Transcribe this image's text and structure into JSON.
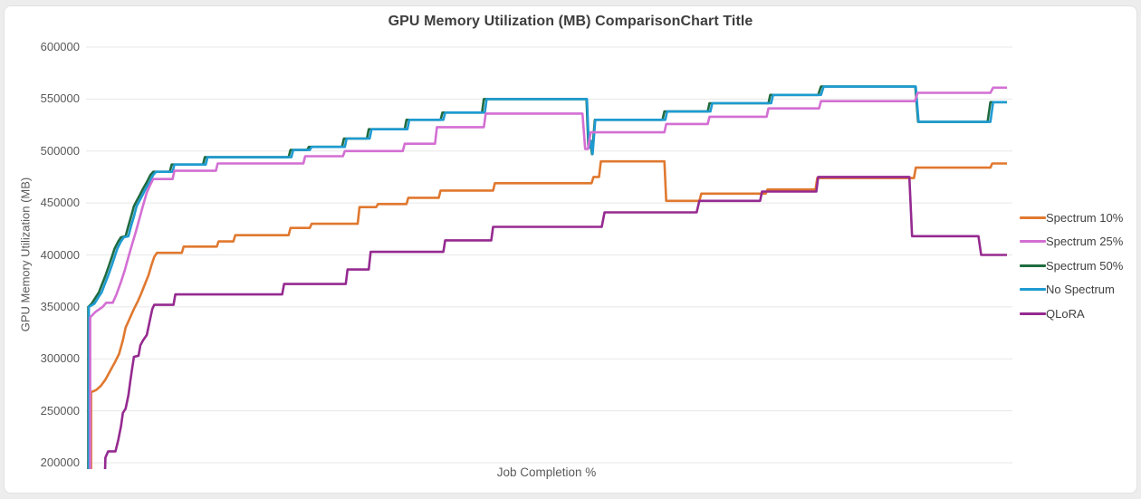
{
  "page": {
    "background": "#ededed",
    "card_background": "#ffffff",
    "card_border": "#e2e2e2"
  },
  "chart": {
    "title": "GPU Memory Utilization (MB) ComparisonChart Title",
    "x_title": "Job Completion %",
    "y_title": "GPU Memory Utilization (MB)"
  },
  "chart_data": {
    "type": "line",
    "title": "GPU Memory Utilization (MB) ComparisonChart Title",
    "xlabel": "Job Completion %",
    "ylabel": "GPU Memory Utilization (MB)",
    "x_range_percent": [
      0,
      100
    ],
    "x_tick_labels": [],
    "ylim": [
      200000,
      600000
    ],
    "y_ticks": [
      600000,
      550000,
      500000,
      450000,
      400000,
      350000,
      300000,
      250000,
      200000
    ],
    "grid": "horizontal-only",
    "gridline_color": "#e7e7e7",
    "legend_position": "right",
    "line_style": "stepped",
    "z_order": [
      0,
      2,
      3,
      1,
      4
    ],
    "series": [
      {
        "name": "Spectrum 10%",
        "color": "#E0782F",
        "points": [
          [
            0.55,
            170000
          ],
          [
            0.55,
            268000
          ],
          [
            1.1,
            270000
          ],
          [
            1.6,
            274000
          ],
          [
            2.1,
            280000
          ],
          [
            2.6,
            288000
          ],
          [
            3.1,
            296000
          ],
          [
            3.6,
            305000
          ],
          [
            4.0,
            318000
          ],
          [
            4.3,
            330000
          ],
          [
            4.7,
            338000
          ],
          [
            5.2,
            348000
          ],
          [
            5.6,
            355000
          ],
          [
            6.0,
            363000
          ],
          [
            6.4,
            372000
          ],
          [
            6.8,
            381000
          ],
          [
            7.1,
            390000
          ],
          [
            7.4,
            398000
          ],
          [
            7.7,
            402000
          ],
          [
            10.4,
            402000
          ],
          [
            10.6,
            408000
          ],
          [
            14.2,
            408000
          ],
          [
            14.4,
            413000
          ],
          [
            16.0,
            413000
          ],
          [
            16.2,
            419000
          ],
          [
            22.0,
            419000
          ],
          [
            22.2,
            426000
          ],
          [
            24.3,
            426000
          ],
          [
            24.5,
            430000
          ],
          [
            29.5,
            430000
          ],
          [
            29.7,
            446000
          ],
          [
            31.5,
            446000
          ],
          [
            31.7,
            449000
          ],
          [
            34.8,
            449000
          ],
          [
            35.0,
            455000
          ],
          [
            38.3,
            455000
          ],
          [
            38.5,
            462000
          ],
          [
            44.2,
            462000
          ],
          [
            44.4,
            469000
          ],
          [
            54.9,
            469000
          ],
          [
            55.1,
            475000
          ],
          [
            55.7,
            475000
          ],
          [
            55.9,
            490000
          ],
          [
            62.8,
            490000
          ],
          [
            63.0,
            452000
          ],
          [
            66.6,
            452000
          ],
          [
            66.8,
            459000
          ],
          [
            73.8,
            459000
          ],
          [
            74.0,
            463000
          ],
          [
            79.2,
            463000
          ],
          [
            79.4,
            474000
          ],
          [
            89.9,
            474000
          ],
          [
            90.1,
            484000
          ],
          [
            98.2,
            484000
          ],
          [
            98.4,
            488000
          ],
          [
            100,
            488000
          ]
        ]
      },
      {
        "name": "Spectrum 25%",
        "color": "#D36FD3",
        "points": [
          [
            0.45,
            170000
          ],
          [
            0.45,
            340000
          ],
          [
            1.0,
            345000
          ],
          [
            1.8,
            350000
          ],
          [
            2.2,
            354000
          ],
          [
            2.9,
            354000
          ],
          [
            3.3,
            362000
          ],
          [
            3.8,
            374000
          ],
          [
            4.2,
            385000
          ],
          [
            4.6,
            398000
          ],
          [
            5.0,
            410000
          ],
          [
            5.4,
            422000
          ],
          [
            5.8,
            435000
          ],
          [
            6.2,
            448000
          ],
          [
            6.6,
            460000
          ],
          [
            7.0,
            468000
          ],
          [
            7.3,
            473000
          ],
          [
            9.4,
            473000
          ],
          [
            9.6,
            481000
          ],
          [
            14.1,
            481000
          ],
          [
            14.3,
            488000
          ],
          [
            23.6,
            488000
          ],
          [
            23.8,
            495000
          ],
          [
            27.9,
            495000
          ],
          [
            28.1,
            500000
          ],
          [
            34.4,
            500000
          ],
          [
            34.6,
            507000
          ],
          [
            37.9,
            507000
          ],
          [
            38.1,
            523000
          ],
          [
            43.2,
            523000
          ],
          [
            43.4,
            536000
          ],
          [
            53.9,
            536000
          ],
          [
            54.2,
            502000
          ],
          [
            54.5,
            502000
          ],
          [
            54.8,
            518000
          ],
          [
            62.8,
            518000
          ],
          [
            63.0,
            526000
          ],
          [
            67.5,
            526000
          ],
          [
            67.7,
            533000
          ],
          [
            73.9,
            533000
          ],
          [
            74.1,
            541000
          ],
          [
            79.6,
            541000
          ],
          [
            79.8,
            548000
          ],
          [
            90.0,
            548000
          ],
          [
            90.3,
            556000
          ],
          [
            98.2,
            556000
          ],
          [
            98.5,
            561000
          ],
          [
            100,
            561000
          ]
        ]
      },
      {
        "name": "Spectrum 50%",
        "color": "#1F6B40",
        "points": [
          [
            0.25,
            170000
          ],
          [
            0.25,
            350000
          ],
          [
            0.6,
            353000
          ],
          [
            1.1,
            360000
          ],
          [
            1.4,
            364000
          ],
          [
            1.7,
            371000
          ],
          [
            2.1,
            380000
          ],
          [
            2.5,
            390000
          ],
          [
            2.8,
            398000
          ],
          [
            3.1,
            406000
          ],
          [
            3.5,
            413000
          ],
          [
            3.8,
            417000
          ],
          [
            4.3,
            418000
          ],
          [
            4.6,
            428000
          ],
          [
            4.9,
            437000
          ],
          [
            5.2,
            447000
          ],
          [
            5.5,
            452000
          ],
          [
            5.8,
            457000
          ],
          [
            6.2,
            464000
          ],
          [
            6.6,
            470000
          ],
          [
            7.0,
            477000
          ],
          [
            7.3,
            480000
          ],
          [
            9.1,
            480000
          ],
          [
            9.3,
            487000
          ],
          [
            12.7,
            487000
          ],
          [
            12.9,
            494000
          ],
          [
            22.0,
            494000
          ],
          [
            22.2,
            501000
          ],
          [
            24.0,
            501000
          ],
          [
            24.2,
            504000
          ],
          [
            27.8,
            504000
          ],
          [
            28.0,
            512000
          ],
          [
            30.5,
            512000
          ],
          [
            30.7,
            521000
          ],
          [
            34.6,
            521000
          ],
          [
            34.8,
            530000
          ],
          [
            38.5,
            530000
          ],
          [
            38.7,
            537000
          ],
          [
            43.0,
            537000
          ],
          [
            43.2,
            550000
          ],
          [
            54.35,
            550000
          ],
          [
            54.55,
            503000
          ],
          [
            54.75,
            510000
          ],
          [
            54.95,
            497000
          ],
          [
            55.25,
            530000
          ],
          [
            62.6,
            530000
          ],
          [
            62.8,
            538000
          ],
          [
            67.5,
            538000
          ],
          [
            67.7,
            546000
          ],
          [
            74.1,
            546000
          ],
          [
            74.3,
            554000
          ],
          [
            79.5,
            554000
          ],
          [
            79.8,
            562000
          ],
          [
            90.05,
            562000
          ],
          [
            90.35,
            528000
          ],
          [
            97.9,
            528000
          ],
          [
            98.2,
            547000
          ],
          [
            100,
            547000
          ]
        ]
      },
      {
        "name": "No Spectrum",
        "color": "#1E9BD2",
        "points": [
          [
            0.3,
            170000
          ],
          [
            0.3,
            350000
          ],
          [
            0.9,
            353000
          ],
          [
            1.4,
            360000
          ],
          [
            1.7,
            364000
          ],
          [
            2.0,
            371000
          ],
          [
            2.4,
            380000
          ],
          [
            2.8,
            390000
          ],
          [
            3.1,
            398000
          ],
          [
            3.4,
            406000
          ],
          [
            3.8,
            413000
          ],
          [
            4.1,
            417000
          ],
          [
            4.6,
            418000
          ],
          [
            4.9,
            428000
          ],
          [
            5.2,
            437000
          ],
          [
            5.5,
            447000
          ],
          [
            5.8,
            452000
          ],
          [
            6.1,
            457000
          ],
          [
            6.5,
            464000
          ],
          [
            6.9,
            470000
          ],
          [
            7.3,
            477000
          ],
          [
            7.6,
            480000
          ],
          [
            9.4,
            480000
          ],
          [
            9.6,
            487000
          ],
          [
            13.0,
            487000
          ],
          [
            13.2,
            494000
          ],
          [
            22.3,
            494000
          ],
          [
            22.5,
            501000
          ],
          [
            24.3,
            501000
          ],
          [
            24.5,
            504000
          ],
          [
            28.1,
            504000
          ],
          [
            28.3,
            512000
          ],
          [
            30.8,
            512000
          ],
          [
            31.0,
            521000
          ],
          [
            34.9,
            521000
          ],
          [
            35.1,
            530000
          ],
          [
            38.8,
            530000
          ],
          [
            39.0,
            537000
          ],
          [
            43.3,
            537000
          ],
          [
            43.5,
            550000
          ],
          [
            54.4,
            550000
          ],
          [
            54.6,
            503000
          ],
          [
            54.8,
            510000
          ],
          [
            55.0,
            497000
          ],
          [
            55.3,
            530000
          ],
          [
            62.9,
            530000
          ],
          [
            63.1,
            538000
          ],
          [
            67.8,
            538000
          ],
          [
            68.0,
            546000
          ],
          [
            74.4,
            546000
          ],
          [
            74.6,
            554000
          ],
          [
            79.8,
            554000
          ],
          [
            80.1,
            562000
          ],
          [
            90.1,
            562000
          ],
          [
            90.4,
            528000
          ],
          [
            98.2,
            528000
          ],
          [
            98.5,
            547000
          ],
          [
            100,
            547000
          ]
        ]
      },
      {
        "name": "QLoRA",
        "color": "#952A90",
        "points": [
          [
            2.0,
            170000
          ],
          [
            2.1,
            205000
          ],
          [
            2.4,
            211000
          ],
          [
            3.2,
            211000
          ],
          [
            3.5,
            222000
          ],
          [
            3.8,
            235000
          ],
          [
            4.0,
            248000
          ],
          [
            4.3,
            252000
          ],
          [
            4.6,
            265000
          ],
          [
            4.8,
            278000
          ],
          [
            5.0,
            290000
          ],
          [
            5.2,
            302000
          ],
          [
            5.7,
            303000
          ],
          [
            5.9,
            313000
          ],
          [
            6.2,
            318000
          ],
          [
            6.6,
            323000
          ],
          [
            7.0,
            340000
          ],
          [
            7.2,
            348000
          ],
          [
            7.4,
            352000
          ],
          [
            9.5,
            352000
          ],
          [
            9.7,
            362000
          ],
          [
            21.3,
            362000
          ],
          [
            21.5,
            372000
          ],
          [
            28.2,
            372000
          ],
          [
            28.4,
            386000
          ],
          [
            30.7,
            386000
          ],
          [
            30.9,
            403000
          ],
          [
            38.8,
            403000
          ],
          [
            39.0,
            414000
          ],
          [
            44.0,
            414000
          ],
          [
            44.2,
            427000
          ],
          [
            56.0,
            427000
          ],
          [
            56.3,
            441000
          ],
          [
            66.3,
            441000
          ],
          [
            66.6,
            452000
          ],
          [
            73.2,
            452000
          ],
          [
            73.4,
            461000
          ],
          [
            79.3,
            461000
          ],
          [
            79.5,
            475000
          ],
          [
            89.4,
            475000
          ],
          [
            89.7,
            418000
          ],
          [
            96.9,
            418000
          ],
          [
            97.2,
            400000
          ],
          [
            100,
            400000
          ]
        ]
      }
    ]
  },
  "legend": {
    "items": [
      "Spectrum 10%",
      "Spectrum 25%",
      "Spectrum 50%",
      "No Spectrum",
      "QLoRA"
    ]
  }
}
